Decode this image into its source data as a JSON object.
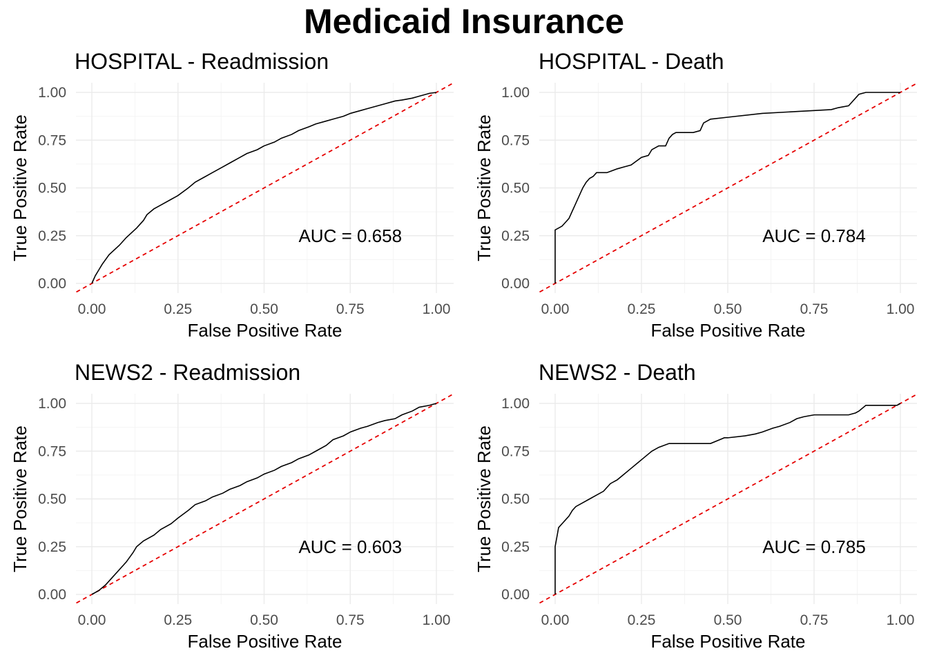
{
  "figure": {
    "title": "Medicaid Insurance"
  },
  "chart_data": [
    {
      "type": "line",
      "title": "HOSPITAL - Readmission",
      "xlabel": "False Positive Rate",
      "ylabel": "True Positive Rate",
      "xlim": [
        0,
        1
      ],
      "ylim": [
        0,
        1
      ],
      "x_ticks": [
        "0.00",
        "0.25",
        "0.50",
        "0.75",
        "1.00"
      ],
      "y_ticks": [
        "0.00",
        "0.25",
        "0.50",
        "0.75",
        "1.00"
      ],
      "annotation": "AUC = 0.658",
      "reference_line": "diagonal",
      "grid": true,
      "colors": {
        "roc": "#000000",
        "reference": "#e60000"
      },
      "x": [
        0,
        0.01,
        0.02,
        0.03,
        0.05,
        0.08,
        0.1,
        0.13,
        0.15,
        0.16,
        0.18,
        0.2,
        0.23,
        0.25,
        0.28,
        0.3,
        0.33,
        0.35,
        0.38,
        0.4,
        0.43,
        0.45,
        0.48,
        0.5,
        0.53,
        0.55,
        0.58,
        0.6,
        0.63,
        0.65,
        0.68,
        0.7,
        0.73,
        0.75,
        0.78,
        0.8,
        0.83,
        0.85,
        0.88,
        0.9,
        0.93,
        0.95,
        0.97,
        0.98,
        1.0
      ],
      "y": [
        0,
        0.04,
        0.07,
        0.1,
        0.15,
        0.2,
        0.24,
        0.29,
        0.33,
        0.36,
        0.39,
        0.41,
        0.44,
        0.46,
        0.5,
        0.53,
        0.56,
        0.58,
        0.61,
        0.63,
        0.66,
        0.68,
        0.7,
        0.72,
        0.74,
        0.76,
        0.78,
        0.8,
        0.82,
        0.835,
        0.85,
        0.86,
        0.875,
        0.89,
        0.905,
        0.915,
        0.93,
        0.94,
        0.955,
        0.96,
        0.97,
        0.98,
        0.99,
        0.995,
        1.0
      ]
    },
    {
      "type": "line",
      "title": "HOSPITAL - Death",
      "xlabel": "False Positive Rate",
      "ylabel": "True Positive Rate",
      "xlim": [
        0,
        1
      ],
      "ylim": [
        0,
        1
      ],
      "x_ticks": [
        "0.00",
        "0.25",
        "0.50",
        "0.75",
        "1.00"
      ],
      "y_ticks": [
        "0.00",
        "0.25",
        "0.50",
        "0.75",
        "1.00"
      ],
      "annotation": "AUC = 0.784",
      "reference_line": "diagonal",
      "grid": true,
      "colors": {
        "roc": "#000000",
        "reference": "#e60000"
      },
      "x": [
        0,
        0,
        0.01,
        0.02,
        0.03,
        0.04,
        0.05,
        0.06,
        0.07,
        0.08,
        0.09,
        0.1,
        0.11,
        0.12,
        0.15,
        0.18,
        0.2,
        0.22,
        0.25,
        0.27,
        0.28,
        0.3,
        0.32,
        0.33,
        0.34,
        0.35,
        0.38,
        0.4,
        0.42,
        0.43,
        0.45,
        0.5,
        0.6,
        0.7,
        0.8,
        0.82,
        0.85,
        0.86,
        0.87,
        0.88,
        0.9,
        1.0
      ],
      "y": [
        0,
        0.28,
        0.29,
        0.3,
        0.32,
        0.34,
        0.38,
        0.42,
        0.46,
        0.5,
        0.53,
        0.55,
        0.56,
        0.58,
        0.58,
        0.6,
        0.61,
        0.62,
        0.66,
        0.67,
        0.7,
        0.72,
        0.72,
        0.76,
        0.78,
        0.79,
        0.79,
        0.79,
        0.8,
        0.84,
        0.86,
        0.87,
        0.89,
        0.9,
        0.91,
        0.92,
        0.93,
        0.95,
        0.97,
        0.99,
        1.0,
        1.0
      ]
    },
    {
      "type": "line",
      "title": "NEWS2 - Readmission",
      "xlabel": "False Positive Rate",
      "ylabel": "True Positive Rate",
      "xlim": [
        0,
        1
      ],
      "ylim": [
        0,
        1
      ],
      "x_ticks": [
        "0.00",
        "0.25",
        "0.50",
        "0.75",
        "1.00"
      ],
      "y_ticks": [
        "0.00",
        "0.25",
        "0.50",
        "0.75",
        "1.00"
      ],
      "annotation": "AUC = 0.603",
      "reference_line": "diagonal",
      "grid": true,
      "colors": {
        "roc": "#000000",
        "reference": "#e60000"
      },
      "x": [
        0,
        0.02,
        0.04,
        0.06,
        0.08,
        0.1,
        0.12,
        0.13,
        0.15,
        0.18,
        0.2,
        0.23,
        0.25,
        0.28,
        0.3,
        0.33,
        0.35,
        0.38,
        0.4,
        0.43,
        0.45,
        0.48,
        0.5,
        0.53,
        0.55,
        0.58,
        0.6,
        0.63,
        0.65,
        0.68,
        0.7,
        0.73,
        0.75,
        0.78,
        0.8,
        0.83,
        0.85,
        0.88,
        0.9,
        0.93,
        0.95,
        0.98,
        1.0
      ],
      "y": [
        0,
        0.02,
        0.05,
        0.09,
        0.13,
        0.17,
        0.22,
        0.25,
        0.28,
        0.31,
        0.34,
        0.37,
        0.4,
        0.44,
        0.47,
        0.49,
        0.51,
        0.53,
        0.55,
        0.57,
        0.59,
        0.61,
        0.63,
        0.65,
        0.67,
        0.69,
        0.71,
        0.73,
        0.75,
        0.78,
        0.81,
        0.83,
        0.85,
        0.87,
        0.88,
        0.9,
        0.91,
        0.92,
        0.94,
        0.96,
        0.98,
        0.99,
        1.0
      ]
    },
    {
      "type": "line",
      "title": "NEWS2 - Death",
      "xlabel": "False Positive Rate",
      "ylabel": "True Positive Rate",
      "xlim": [
        0,
        1
      ],
      "ylim": [
        0,
        1
      ],
      "x_ticks": [
        "0.00",
        "0.25",
        "0.50",
        "0.75",
        "1.00"
      ],
      "y_ticks": [
        "0.00",
        "0.25",
        "0.50",
        "0.75",
        "1.00"
      ],
      "annotation": "AUC = 0.785",
      "reference_line": "diagonal",
      "grid": true,
      "colors": {
        "roc": "#000000",
        "reference": "#e60000"
      },
      "x": [
        0,
        0,
        0.005,
        0.01,
        0.02,
        0.03,
        0.04,
        0.05,
        0.06,
        0.08,
        0.1,
        0.12,
        0.14,
        0.16,
        0.18,
        0.2,
        0.22,
        0.24,
        0.26,
        0.28,
        0.3,
        0.33,
        0.35,
        0.4,
        0.45,
        0.49,
        0.5,
        0.55,
        0.58,
        0.6,
        0.63,
        0.65,
        0.68,
        0.7,
        0.72,
        0.75,
        0.78,
        0.8,
        0.85,
        0.87,
        0.88,
        0.9,
        0.95,
        0.99,
        1.0
      ],
      "y": [
        0,
        0.25,
        0.3,
        0.35,
        0.37,
        0.39,
        0.41,
        0.44,
        0.46,
        0.48,
        0.5,
        0.52,
        0.54,
        0.58,
        0.6,
        0.63,
        0.66,
        0.69,
        0.72,
        0.75,
        0.77,
        0.79,
        0.79,
        0.79,
        0.79,
        0.82,
        0.82,
        0.83,
        0.84,
        0.85,
        0.87,
        0.88,
        0.9,
        0.92,
        0.93,
        0.94,
        0.94,
        0.94,
        0.94,
        0.95,
        0.96,
        0.99,
        0.99,
        0.99,
        1.0
      ]
    }
  ]
}
